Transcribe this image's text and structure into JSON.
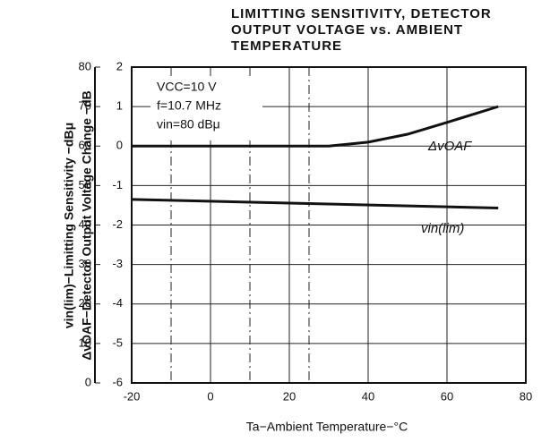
{
  "chart_data": {
    "type": "line",
    "title": [
      "LIMITTING SENSITIVITY, DETECTOR",
      "OUTPUT VOLTAGE vs. AMBIENT",
      "TEMPERATURE"
    ],
    "xlabel": "Ta−Ambient Temperature−°C",
    "ylabel": "vin(lim)−Limitting Sensitivity −dBμ",
    "y2label": "ΔvOAF−Detector Output Voltage Change −dB",
    "annotations": [
      "VCC=10 V",
      "f=10.7 MHz",
      "vin=80 dBμ"
    ],
    "xlim": [
      -20,
      80
    ],
    "xticks": [
      -20,
      0,
      20,
      40,
      60,
      80
    ],
    "xminor_grid": [
      -10,
      10,
      25
    ],
    "ylim": [
      0,
      80
    ],
    "yticks": [
      0,
      10,
      20,
      30,
      40,
      50,
      60,
      70,
      80
    ],
    "y2lim": [
      -6,
      2
    ],
    "y2ticks": [
      -6,
      -5,
      -4,
      -3,
      -2,
      -1,
      0,
      1,
      2
    ],
    "grid": true,
    "series": [
      {
        "name": "ΔvOAF",
        "color": "#111111",
        "axis": "y2",
        "x": [
          -20,
          0,
          20,
          30,
          40,
          50,
          60,
          73
        ],
        "values": [
          0,
          0,
          0,
          0,
          0.1,
          0.3,
          0.6,
          1.0
        ]
      },
      {
        "name": "vin(lim)",
        "color": "#111111",
        "axis": "y",
        "x": [
          -20,
          73
        ],
        "values": [
          46.5,
          44.3
        ]
      }
    ]
  }
}
